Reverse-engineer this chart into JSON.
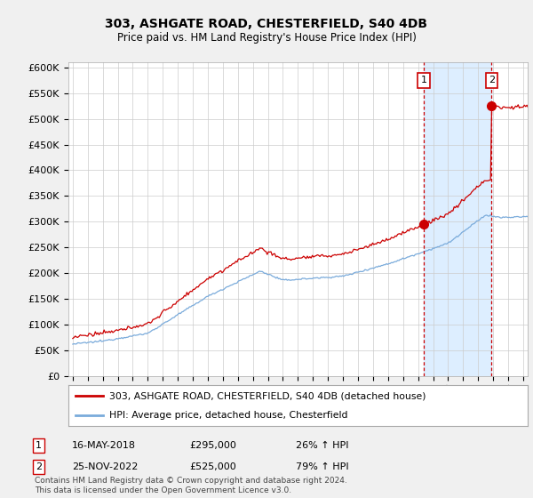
{
  "title1": "303, ASHGATE ROAD, CHESTERFIELD, S40 4DB",
  "title2": "Price paid vs. HM Land Registry's House Price Index (HPI)",
  "ylabel_ticks": [
    "£0",
    "£50K",
    "£100K",
    "£150K",
    "£200K",
    "£250K",
    "£300K",
    "£350K",
    "£400K",
    "£450K",
    "£500K",
    "£550K",
    "£600K"
  ],
  "ytick_values": [
    0,
    50000,
    100000,
    150000,
    200000,
    250000,
    300000,
    350000,
    400000,
    450000,
    500000,
    550000,
    600000
  ],
  "xlim_start": 1994.7,
  "xlim_end": 2025.3,
  "ylim_min": 0,
  "ylim_max": 610000,
  "transaction1_date": 2018.37,
  "transaction1_price": 295000,
  "transaction2_date": 2022.9,
  "transaction2_price": 525000,
  "legend_line1": "303, ASHGATE ROAD, CHESTERFIELD, S40 4DB (detached house)",
  "legend_line2": "HPI: Average price, detached house, Chesterfield",
  "annotation1_date": "16-MAY-2018",
  "annotation1_price": "£295,000",
  "annotation1_hpi": "26% ↑ HPI",
  "annotation2_date": "25-NOV-2022",
  "annotation2_price": "£525,000",
  "annotation2_hpi": "79% ↑ HPI",
  "footnote": "Contains HM Land Registry data © Crown copyright and database right 2024.\nThis data is licensed under the Open Government Licence v3.0.",
  "line_color_property": "#cc0000",
  "line_color_hpi": "#7aabdb",
  "background_color": "#f0f0f0",
  "plot_bg_color": "#ffffff",
  "grid_color": "#cccccc",
  "dashed_line_color": "#cc0000",
  "span_color": "#ddeeff"
}
